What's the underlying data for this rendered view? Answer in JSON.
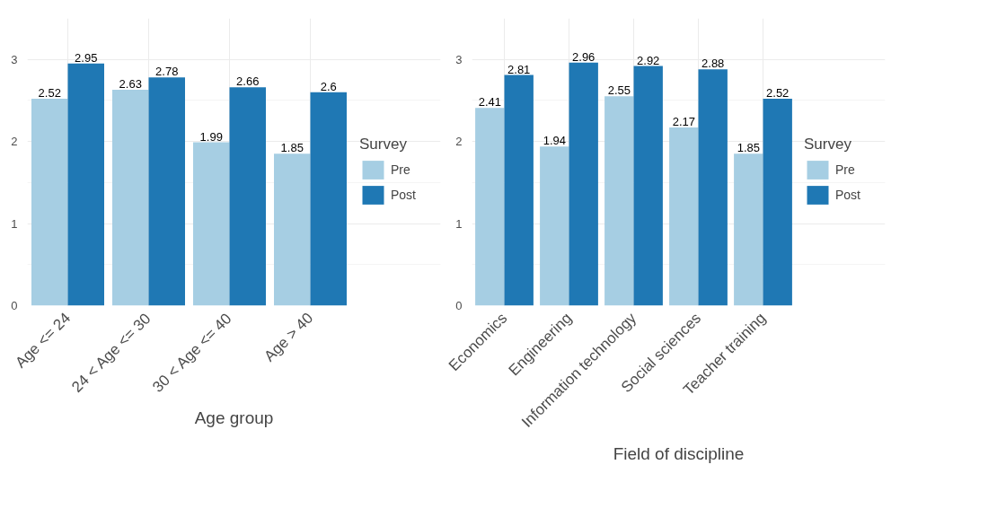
{
  "chart_data": [
    {
      "type": "bar",
      "xlabel": "Age group",
      "legend_title": "Survey",
      "categories": [
        "Age <= 24",
        "24 < Age <= 30",
        "30 < Age <= 40",
        "Age > 40"
      ],
      "series": [
        {
          "name": "Pre",
          "color": "#a6cee3",
          "values": [
            2.52,
            2.63,
            1.99,
            1.85
          ]
        },
        {
          "name": "Post",
          "color": "#1f78b4",
          "values": [
            2.95,
            2.78,
            2.66,
            2.6
          ]
        }
      ],
      "ylim": [
        0,
        3.5
      ],
      "yticks": [
        0,
        1,
        2,
        3
      ],
      "grid": true,
      "legend": "right",
      "data_labels": true
    },
    {
      "type": "bar",
      "xlabel": "Field of discipline",
      "legend_title": "Survey",
      "categories": [
        "Economics",
        "Engineering",
        "Information technology",
        "Social sciences",
        "Teacher training"
      ],
      "series": [
        {
          "name": "Pre",
          "color": "#a6cee3",
          "values": [
            2.41,
            1.94,
            2.55,
            2.17,
            1.85
          ]
        },
        {
          "name": "Post",
          "color": "#1f78b4",
          "values": [
            2.81,
            2.96,
            2.92,
            2.88,
            2.52
          ]
        }
      ],
      "ylim": [
        0,
        3.5
      ],
      "yticks": [
        0,
        1,
        2,
        3
      ],
      "grid": true,
      "legend": "right",
      "data_labels": true
    }
  ]
}
